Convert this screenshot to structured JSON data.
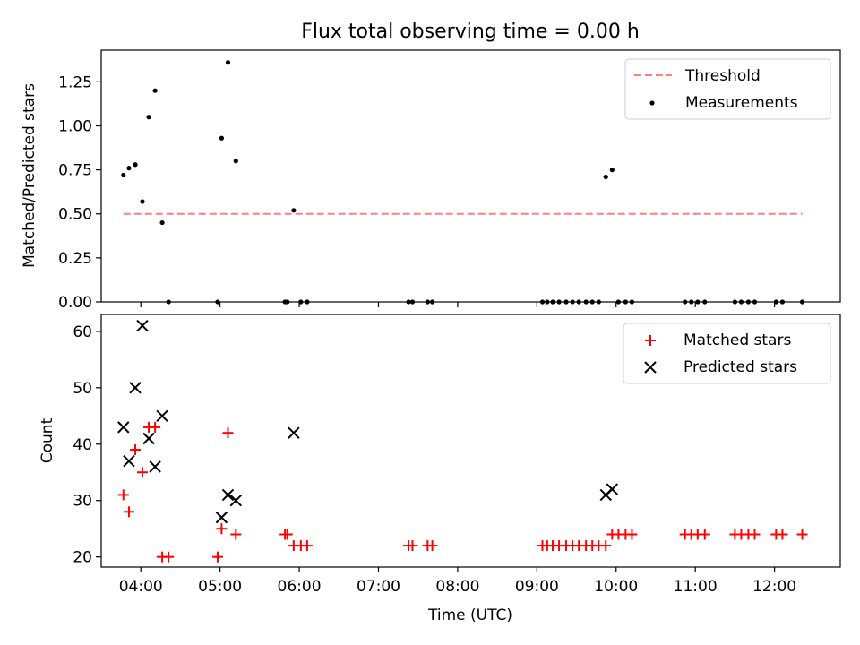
{
  "figure": {
    "title": "Flux total observing time = 0.00 h"
  },
  "chart_data": [
    {
      "type": "scatter",
      "ylabel": "Matched/Predicted stars",
      "xlabel": "",
      "x_unit": "hours UTC",
      "xlim": [
        3.5,
        12.83
      ],
      "ylim": [
        0,
        1.43
      ],
      "yticks": [
        0,
        0.25,
        0.5,
        0.75,
        1.0,
        1.25
      ],
      "ytick_labels": [
        "0.00",
        "0.25",
        "0.50",
        "0.75",
        "1.00",
        "1.25"
      ],
      "legend": {
        "position": "top-right",
        "entries": [
          "Threshold",
          "Measurements"
        ]
      },
      "grid": false,
      "threshold": {
        "name": "Threshold",
        "value": 0.5,
        "x_start": 3.78,
        "x_end": 12.35,
        "color": "#ff7f7f",
        "style": "dashed"
      },
      "series": [
        {
          "name": "Measurements",
          "color": "#000000",
          "marker": "dot",
          "points": [
            [
              3.78,
              0.72
            ],
            [
              3.85,
              0.76
            ],
            [
              3.93,
              0.78
            ],
            [
              4.02,
              0.57
            ],
            [
              4.1,
              1.05
            ],
            [
              4.18,
              1.2
            ],
            [
              4.27,
              0.45
            ],
            [
              4.35,
              0.0
            ],
            [
              4.97,
              0.0
            ],
            [
              5.02,
              0.93
            ],
            [
              5.1,
              1.36
            ],
            [
              5.2,
              0.8
            ],
            [
              5.82,
              0.0
            ],
            [
              5.85,
              0.0
            ],
            [
              5.93,
              0.52
            ],
            [
              6.02,
              0.0
            ],
            [
              6.1,
              0.0
            ],
            [
              7.38,
              0.0
            ],
            [
              7.43,
              0.0
            ],
            [
              7.62,
              0.0
            ],
            [
              7.68,
              0.0
            ],
            [
              9.07,
              0.0
            ],
            [
              9.13,
              0.0
            ],
            [
              9.2,
              0.0
            ],
            [
              9.28,
              0.0
            ],
            [
              9.37,
              0.0
            ],
            [
              9.45,
              0.0
            ],
            [
              9.53,
              0.0
            ],
            [
              9.62,
              0.0
            ],
            [
              9.7,
              0.0
            ],
            [
              9.78,
              0.0
            ],
            [
              9.87,
              0.71
            ],
            [
              9.95,
              0.75
            ],
            [
              10.03,
              0.0
            ],
            [
              10.12,
              0.0
            ],
            [
              10.2,
              0.0
            ],
            [
              10.87,
              0.0
            ],
            [
              10.95,
              0.0
            ],
            [
              11.03,
              0.0
            ],
            [
              11.12,
              0.0
            ],
            [
              11.5,
              0.0
            ],
            [
              11.58,
              0.0
            ],
            [
              11.67,
              0.0
            ],
            [
              11.75,
              0.0
            ],
            [
              12.02,
              0.0
            ],
            [
              12.1,
              0.0
            ],
            [
              12.35,
              0.0
            ]
          ]
        }
      ]
    },
    {
      "type": "scatter",
      "ylabel": "Count",
      "xlabel": "Time (UTC)",
      "x_unit": "hours UTC",
      "xlim": [
        3.5,
        12.83
      ],
      "ylim": [
        18.2,
        63
      ],
      "xticks": [
        4,
        5,
        6,
        7,
        8,
        9,
        10,
        11,
        12
      ],
      "xtick_labels": [
        "04:00",
        "05:00",
        "06:00",
        "07:00",
        "08:00",
        "09:00",
        "10:00",
        "11:00",
        "12:00"
      ],
      "yticks": [
        20,
        30,
        40,
        50,
        60
      ],
      "ytick_labels": [
        "20",
        "30",
        "40",
        "50",
        "60"
      ],
      "legend": {
        "position": "top-right",
        "entries": [
          "Matched stars",
          "Predicted stars"
        ]
      },
      "grid": false,
      "series": [
        {
          "name": "Matched stars",
          "color": "#ff0000",
          "marker": "plus",
          "points": [
            [
              3.78,
              31
            ],
            [
              3.85,
              28
            ],
            [
              3.93,
              39
            ],
            [
              4.02,
              35
            ],
            [
              4.1,
              43
            ],
            [
              4.18,
              43
            ],
            [
              4.27,
              20
            ],
            [
              4.35,
              20
            ],
            [
              4.97,
              20
            ],
            [
              5.02,
              25
            ],
            [
              5.1,
              42
            ],
            [
              5.2,
              24
            ],
            [
              5.82,
              24
            ],
            [
              5.85,
              24
            ],
            [
              5.93,
              22
            ],
            [
              6.02,
              22
            ],
            [
              6.1,
              22
            ],
            [
              7.38,
              22
            ],
            [
              7.43,
              22
            ],
            [
              7.62,
              22
            ],
            [
              7.68,
              22
            ],
            [
              9.07,
              22
            ],
            [
              9.13,
              22
            ],
            [
              9.2,
              22
            ],
            [
              9.28,
              22
            ],
            [
              9.37,
              22
            ],
            [
              9.45,
              22
            ],
            [
              9.53,
              22
            ],
            [
              9.62,
              22
            ],
            [
              9.7,
              22
            ],
            [
              9.78,
              22
            ],
            [
              9.87,
              22
            ],
            [
              9.95,
              24
            ],
            [
              10.03,
              24
            ],
            [
              10.12,
              24
            ],
            [
              10.2,
              24
            ],
            [
              10.87,
              24
            ],
            [
              10.95,
              24
            ],
            [
              11.03,
              24
            ],
            [
              11.12,
              24
            ],
            [
              11.5,
              24
            ],
            [
              11.58,
              24
            ],
            [
              11.67,
              24
            ],
            [
              11.75,
              24
            ],
            [
              12.02,
              24
            ],
            [
              12.1,
              24
            ],
            [
              12.35,
              24
            ]
          ]
        },
        {
          "name": "Predicted stars",
          "color": "#000000",
          "marker": "x",
          "points": [
            [
              3.78,
              43
            ],
            [
              3.85,
              37
            ],
            [
              3.93,
              50
            ],
            [
              4.02,
              61
            ],
            [
              4.1,
              41
            ],
            [
              4.18,
              36
            ],
            [
              4.27,
              45
            ],
            [
              5.02,
              27
            ],
            [
              5.1,
              31
            ],
            [
              5.2,
              30
            ],
            [
              5.93,
              42
            ],
            [
              9.87,
              31
            ],
            [
              9.95,
              32
            ]
          ]
        }
      ]
    }
  ]
}
